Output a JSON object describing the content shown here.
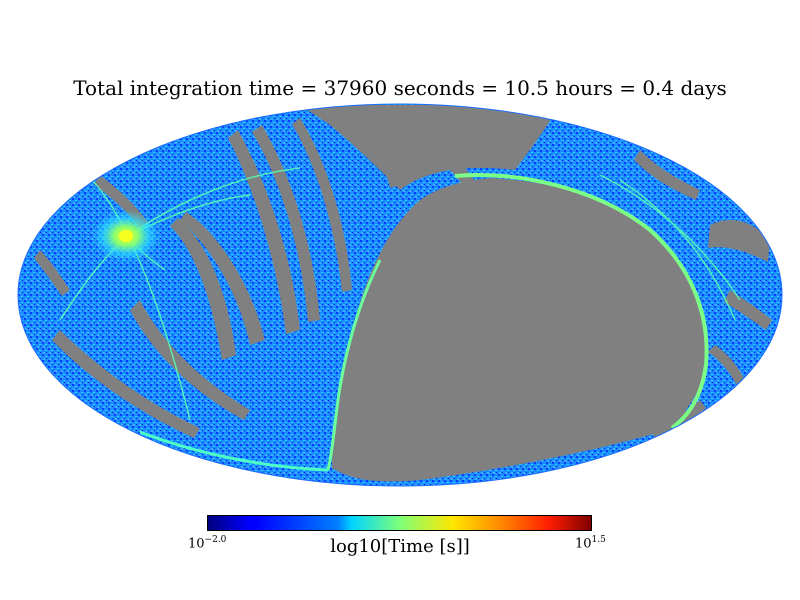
{
  "chart_data": {
    "type": "heatmap",
    "projection": "mollweide",
    "title": "Total integration time = 37960 seconds = 10.5 hours = 0.4 days",
    "colorbar": {
      "label": "log10[Time [s]]",
      "colormap": "jet",
      "min_exponent": "−2.0",
      "max_exponent": "1.5",
      "min_base": "10",
      "max_base": "10",
      "range_log10": [
        -2.0,
        1.5
      ]
    },
    "unobserved_color": "#808080",
    "hotspot_value_log10": 0.3,
    "typical_value_log10": -1.3
  }
}
